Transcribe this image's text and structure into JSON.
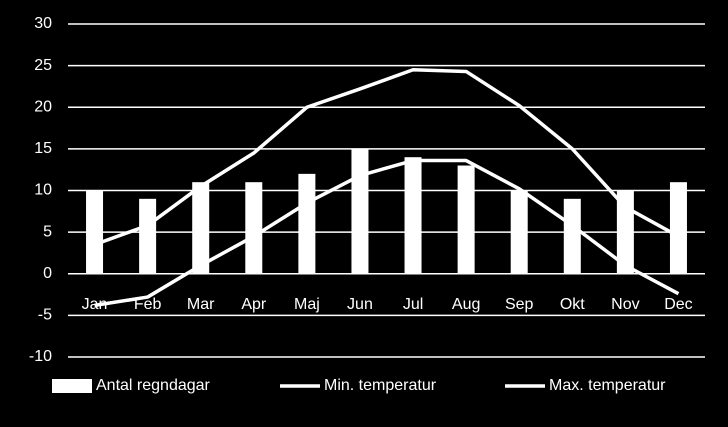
{
  "chart_data": {
    "type": "bar",
    "categories": [
      "Jan",
      "Feb",
      "Mar",
      "Apr",
      "Maj",
      "Jun",
      "Jul",
      "Aug",
      "Sep",
      "Okt",
      "Nov",
      "Dec"
    ],
    "series": [
      {
        "name": "Antal regndagar",
        "type": "bar",
        "color": "#ffffff",
        "values": [
          10,
          9,
          11,
          11,
          12,
          15,
          14,
          13,
          10,
          9,
          10,
          11
        ]
      },
      {
        "name": "Min. temperatur",
        "type": "line",
        "color": "#ffffff",
        "values": [
          -3.8,
          -2.8,
          1,
          4.5,
          8.5,
          11.8,
          13.6,
          13.6,
          10.2,
          5.8,
          1,
          -2.4
        ]
      },
      {
        "name": "Max. temperatur",
        "type": "line",
        "color": "#ffffff",
        "values": [
          3.5,
          5.8,
          10.5,
          14.5,
          20,
          22.2,
          24.5,
          24.3,
          20.2,
          15,
          8,
          4.5
        ]
      }
    ],
    "ylim": [
      -10,
      30
    ],
    "yticks": [
      -10,
      -5,
      0,
      5,
      10,
      15,
      20,
      25,
      30
    ],
    "grid": true,
    "legend": "bottom"
  }
}
